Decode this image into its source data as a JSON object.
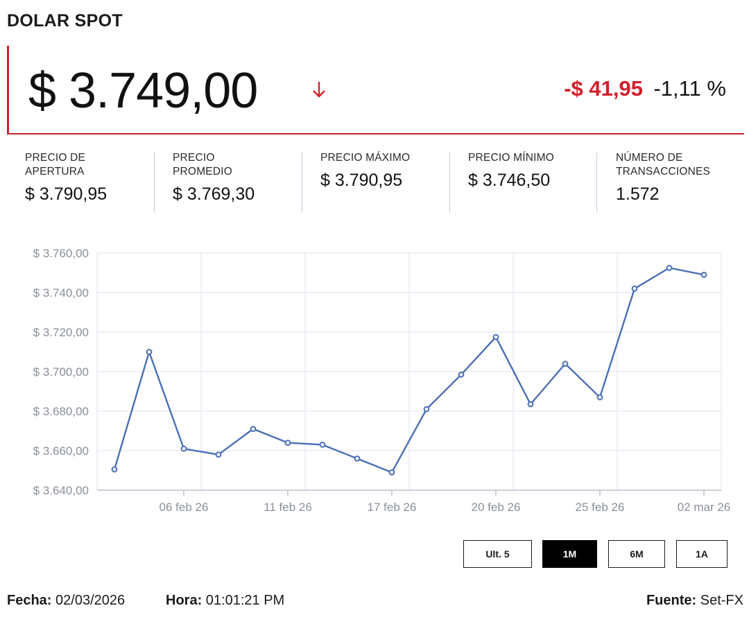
{
  "header": {
    "title": "DOLAR SPOT"
  },
  "price": {
    "current": "$ 3.749,00",
    "change": "-$ 41,95",
    "change_pct": "-1,11 %",
    "direction_icon": "arrow-down-icon",
    "down_color": "#d0202a"
  },
  "stats": [
    {
      "label_line1": "PRECIO DE",
      "label_line2": "APERTURA",
      "value": "$ 3.790,95"
    },
    {
      "label_line1": "PRECIO",
      "label_line2": "PROMEDIO",
      "value": "$ 3.769,30"
    },
    {
      "label_line1": "PRECIO MÁXIMO",
      "label_line2": "",
      "value": "$ 3.790,95"
    },
    {
      "label_line1": "PRECIO MÍNIMO",
      "label_line2": "",
      "value": "$ 3.746,50"
    },
    {
      "label_line1": "NÚMERO DE",
      "label_line2": "TRANSACCIONES",
      "value": "1.572"
    }
  ],
  "chart_data": {
    "type": "line",
    "line_color": "#4a6fb5",
    "ylim": [
      3640,
      3760
    ],
    "y_ticks": [
      {
        "value": 3760,
        "label": "$ 3.760,00"
      },
      {
        "value": 3740,
        "label": "$ 3.740,00"
      },
      {
        "value": 3720,
        "label": "$ 3.720,00"
      },
      {
        "value": 3700,
        "label": "$ 3.700,00"
      },
      {
        "value": 3680,
        "label": "$ 3.680,00"
      },
      {
        "value": 3660,
        "label": "$ 3.660,00"
      },
      {
        "value": 3640,
        "label": "$ 3.640,00"
      }
    ],
    "x_ticks": [
      {
        "index": 2,
        "label": "06 feb 26"
      },
      {
        "index": 5,
        "label": "11 feb 26"
      },
      {
        "index": 8,
        "label": "17 feb 26"
      },
      {
        "index": 11,
        "label": "20 feb 26"
      },
      {
        "index": 14,
        "label": "25 feb 26"
      },
      {
        "index": 17,
        "label": "02 mar 26"
      }
    ],
    "values": [
      3650.5,
      3710.0,
      3661.0,
      3658.0,
      3671.0,
      3664.0,
      3663.0,
      3656.0,
      3649.0,
      3681.0,
      3698.5,
      3717.5,
      3683.5,
      3704.0,
      3687.0,
      3742.0,
      3752.5,
      3749.0
    ],
    "grid": true
  },
  "range_buttons": [
    {
      "label": "Ult. 5",
      "active": false
    },
    {
      "label": "1M",
      "active": true
    },
    {
      "label": "6M",
      "active": false
    },
    {
      "label": "1A",
      "active": false
    }
  ],
  "footer": {
    "fecha_label": "Fecha:",
    "fecha_value": "02/03/2026",
    "hora_label": "Hora:",
    "hora_value": "01:01:21 PM",
    "fuente_label": "Fuente:",
    "fuente_value": "Set-FX"
  }
}
